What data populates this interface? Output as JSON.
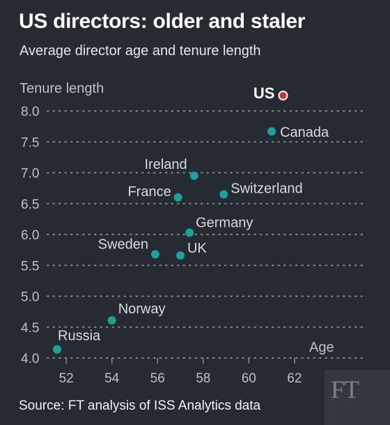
{
  "header": {
    "title": "US directors: older and staler",
    "subtitle": "Average director age and tenure length"
  },
  "footer": {
    "source": "Source: FT analysis of ISS Analytics data",
    "logo_text": "FT"
  },
  "colors": {
    "background": "#262a33",
    "point": "#1aa39b",
    "highlight_point": "#c2363d",
    "gridline": "#8a8c92"
  },
  "chart_data": {
    "type": "scatter",
    "title": "US directors: older and staler",
    "subtitle": "Average director age and tenure length",
    "xlabel": "Age",
    "ylabel": "Tenure length",
    "xlim": [
      50.5,
      63.5
    ],
    "ylim": [
      4.0,
      8.0
    ],
    "x_ticks": [
      52,
      54,
      56,
      58,
      60,
      62
    ],
    "y_ticks": [
      4.0,
      4.5,
      5.0,
      5.5,
      6.0,
      6.5,
      7.0,
      7.5,
      8.0
    ],
    "y_tick_labels": [
      "4.0",
      "4.5",
      "5.0",
      "5.5",
      "6.0",
      "6.5",
      "7.0",
      "7.5",
      "8.0"
    ],
    "grid": "horizontal dotted",
    "points": [
      {
        "label": "US",
        "x": 61.5,
        "y": 8.25,
        "highlight": true
      },
      {
        "label": "Canada",
        "x": 61.0,
        "y": 7.67
      },
      {
        "label": "Ireland",
        "x": 57.6,
        "y": 6.95
      },
      {
        "label": "France",
        "x": 56.9,
        "y": 6.6
      },
      {
        "label": "Switzerland",
        "x": 58.9,
        "y": 6.65
      },
      {
        "label": "Germany",
        "x": 57.4,
        "y": 6.03
      },
      {
        "label": "Sweden",
        "x": 55.9,
        "y": 5.68
      },
      {
        "label": "UK",
        "x": 57.0,
        "y": 5.66
      },
      {
        "label": "Norway",
        "x": 54.0,
        "y": 4.61
      },
      {
        "label": "Russia",
        "x": 51.6,
        "y": 4.14
      }
    ]
  }
}
